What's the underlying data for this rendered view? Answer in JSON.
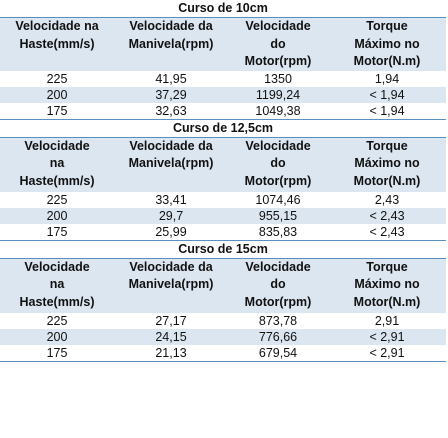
{
  "sections": [
    {
      "title": "Curso de 10cm",
      "headers": [
        "Velocidade na\nHaste(mm/s)",
        "Velocidade da\nManivela(rpm)",
        "Velocidade\ndo\nMotor(rpm)",
        "Torque\nMáximo no\nMotor(N.m)"
      ],
      "rows": [
        [
          "225",
          "41,95",
          "1350",
          "1,94"
        ],
        [
          "200",
          "37,29",
          "1199,24",
          "< 1,94"
        ],
        [
          "175",
          "32,63",
          "1049,38",
          "< 1,94"
        ]
      ]
    },
    {
      "title": "Curso de 12,5cm",
      "headers": [
        "Velocidade\nna\nHaste(mm/s)",
        "Velocidade da\nManivela(rpm)",
        "Velocidade\ndo\nMotor(rpm)",
        "Torque\nMáximo no\nMotor(N.m)"
      ],
      "rows": [
        [
          "225",
          "33,41",
          "1074,46",
          "2,43"
        ],
        [
          "200",
          "29,7",
          "955,15",
          "< 2,43"
        ],
        [
          "175",
          "25,99",
          "835,83",
          "< 2,43"
        ]
      ]
    },
    {
      "title": "Curso de 15cm",
      "headers": [
        "Velocidade\nna\nHaste(mm/s)",
        "Velocidade da\nManivela(rpm)",
        "Velocidade\ndo\nMotor(rpm)",
        "Torque\nMáximo no\nMotor(N.m)"
      ],
      "rows": [
        [
          "225",
          "27,17",
          "873,78",
          "2,91"
        ],
        [
          "200",
          "24,15",
          "776,66",
          "< 2,91"
        ],
        [
          "175",
          "21,13",
          "679,54",
          "< 2,91"
        ]
      ]
    }
  ]
}
